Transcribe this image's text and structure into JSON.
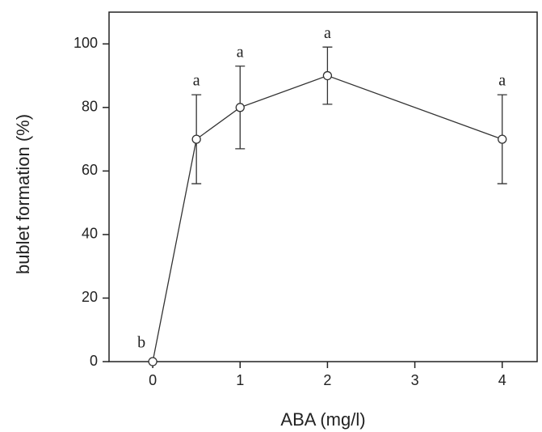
{
  "chart_data": {
    "type": "line",
    "x_label": "ABA (mg/l)",
    "y_label": "bublet formation (%)",
    "x": [
      0,
      0.5,
      1,
      2,
      4
    ],
    "values": [
      0,
      70,
      80,
      90,
      70
    ],
    "errors": [
      0,
      14,
      13,
      9,
      14
    ],
    "point_labels": [
      "b",
      "a",
      "a",
      "a",
      "a"
    ],
    "color": "#333333",
    "xlim": [
      -0.5,
      4.4
    ],
    "xticks": [
      0,
      1,
      2,
      3,
      4
    ],
    "ylim": [
      0,
      110
    ],
    "yticks": [
      0,
      20,
      40,
      60,
      80,
      100
    ],
    "grid": false
  }
}
